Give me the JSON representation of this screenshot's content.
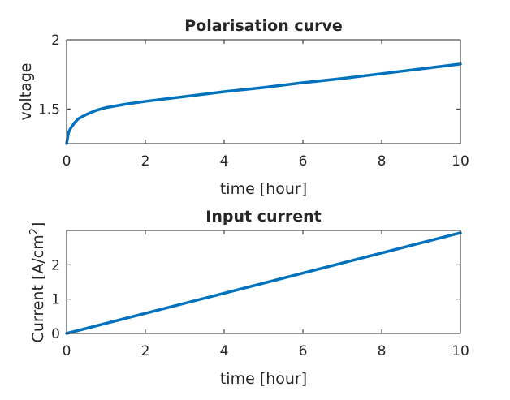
{
  "chart_data": [
    {
      "type": "line",
      "title": "Polarisation curve",
      "xlabel": "time [hour]",
      "ylabel": "voltage",
      "xlim": [
        0,
        10
      ],
      "ylim": [
        1.25,
        2
      ],
      "xticks": [
        0,
        2,
        4,
        6,
        8,
        10
      ],
      "yticks": [
        1.5,
        2
      ],
      "xtick_labels": [
        "0",
        "2",
        "4",
        "6",
        "8",
        "10"
      ],
      "ytick_labels": [
        "1.5",
        "2"
      ],
      "grid": false,
      "color": "#0072BD",
      "series": [
        {
          "x": [
            0,
            0.05,
            0.1,
            0.2,
            0.3,
            0.5,
            0.75,
            1,
            1.5,
            2,
            3,
            4,
            5,
            6,
            7,
            8,
            9,
            10
          ],
          "y": [
            1.25,
            1.33,
            1.36,
            1.4,
            1.43,
            1.46,
            1.49,
            1.51,
            1.535,
            1.555,
            1.59,
            1.625,
            1.655,
            1.69,
            1.72,
            1.755,
            1.79,
            1.825
          ]
        }
      ]
    },
    {
      "type": "line",
      "title": "Input current",
      "xlabel": "time [hour]",
      "ylabel": "Current [A/cm",
      "ylabel_sup": "2",
      "ylabel_tail": "]",
      "xlim": [
        0,
        10
      ],
      "ylim": [
        0,
        3
      ],
      "xticks": [
        0,
        2,
        4,
        6,
        8,
        10
      ],
      "yticks": [
        0,
        1,
        2
      ],
      "xtick_labels": [
        "0",
        "2",
        "4",
        "6",
        "8",
        "10"
      ],
      "ytick_labels": [
        "0",
        "1",
        "2"
      ],
      "grid": false,
      "color": "#0072BD",
      "series": [
        {
          "x": [
            0,
            10
          ],
          "y": [
            0,
            2.93
          ]
        }
      ]
    }
  ]
}
